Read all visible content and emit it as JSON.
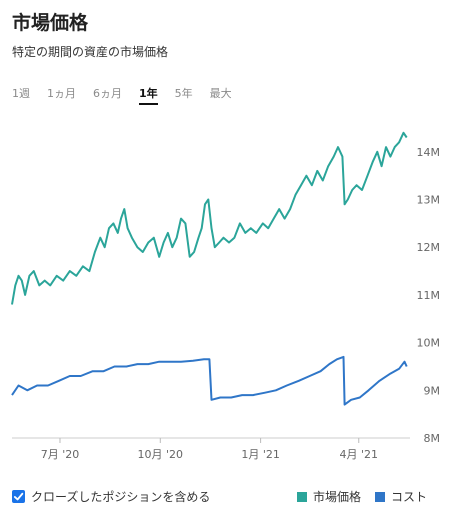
{
  "header": {
    "title": "市場価格",
    "subtitle": "特定の期間の資産の市場価格"
  },
  "tabs": [
    {
      "label": "1週",
      "active": false
    },
    {
      "label": "1ヵ月",
      "active": false
    },
    {
      "label": "6ヵ月",
      "active": false
    },
    {
      "label": "1年",
      "active": true
    },
    {
      "label": "5年",
      "active": false
    },
    {
      "label": "最大",
      "active": false
    }
  ],
  "footer": {
    "checkbox_label": "クローズしたポジションを含める",
    "checkbox_checked": true
  },
  "chart_data": {
    "type": "line",
    "x_start": "2020-05-18",
    "x_end": "2021-05-18",
    "ylim": [
      8,
      14.5
    ],
    "ytick_values": [
      8,
      9,
      10,
      11,
      12,
      13,
      14
    ],
    "ytick_labels": [
      "8M",
      "9M",
      "10M",
      "11M",
      "12M",
      "13M",
      "14M"
    ],
    "xticks": [
      {
        "date": "2020-07-01",
        "label": "7月 '20"
      },
      {
        "date": "2020-10-01",
        "label": "10月 '20"
      },
      {
        "date": "2021-01-01",
        "label": "1月 '21"
      },
      {
        "date": "2021-04-01",
        "label": "4月 '21"
      }
    ],
    "series": [
      {
        "name": "市場価格",
        "color": "#2ba59a",
        "points": [
          [
            "2020-05-18",
            10.8
          ],
          [
            "2020-05-21",
            11.2
          ],
          [
            "2020-05-24",
            11.4
          ],
          [
            "2020-05-27",
            11.3
          ],
          [
            "2020-05-30",
            11.0
          ],
          [
            "2020-06-03",
            11.4
          ],
          [
            "2020-06-07",
            11.5
          ],
          [
            "2020-06-12",
            11.2
          ],
          [
            "2020-06-17",
            11.3
          ],
          [
            "2020-06-22",
            11.2
          ],
          [
            "2020-06-28",
            11.4
          ],
          [
            "2020-07-04",
            11.3
          ],
          [
            "2020-07-10",
            11.5
          ],
          [
            "2020-07-16",
            11.4
          ],
          [
            "2020-07-22",
            11.6
          ],
          [
            "2020-07-28",
            11.5
          ],
          [
            "2020-08-02",
            11.9
          ],
          [
            "2020-08-07",
            12.2
          ],
          [
            "2020-08-11",
            12.0
          ],
          [
            "2020-08-15",
            12.4
          ],
          [
            "2020-08-19",
            12.5
          ],
          [
            "2020-08-23",
            12.3
          ],
          [
            "2020-08-26",
            12.6
          ],
          [
            "2020-08-29",
            12.8
          ],
          [
            "2020-09-01",
            12.4
          ],
          [
            "2020-09-05",
            12.2
          ],
          [
            "2020-09-10",
            12.0
          ],
          [
            "2020-09-15",
            11.9
          ],
          [
            "2020-09-20",
            12.1
          ],
          [
            "2020-09-25",
            12.2
          ],
          [
            "2020-09-30",
            11.8
          ],
          [
            "2020-10-04",
            12.1
          ],
          [
            "2020-10-08",
            12.3
          ],
          [
            "2020-10-12",
            12.0
          ],
          [
            "2020-10-16",
            12.2
          ],
          [
            "2020-10-20",
            12.6
          ],
          [
            "2020-10-24",
            12.5
          ],
          [
            "2020-10-28",
            11.8
          ],
          [
            "2020-11-01",
            11.9
          ],
          [
            "2020-11-05",
            12.2
          ],
          [
            "2020-11-08",
            12.4
          ],
          [
            "2020-11-11",
            12.9
          ],
          [
            "2020-11-14",
            13.0
          ],
          [
            "2020-11-17",
            12.4
          ],
          [
            "2020-11-20",
            12.0
          ],
          [
            "2020-11-24",
            12.1
          ],
          [
            "2020-11-28",
            12.2
          ],
          [
            "2020-12-03",
            12.1
          ],
          [
            "2020-12-08",
            12.2
          ],
          [
            "2020-12-13",
            12.5
          ],
          [
            "2020-12-18",
            12.3
          ],
          [
            "2020-12-23",
            12.4
          ],
          [
            "2020-12-28",
            12.3
          ],
          [
            "2021-01-03",
            12.5
          ],
          [
            "2021-01-08",
            12.4
          ],
          [
            "2021-01-13",
            12.6
          ],
          [
            "2021-01-18",
            12.8
          ],
          [
            "2021-01-23",
            12.6
          ],
          [
            "2021-01-28",
            12.8
          ],
          [
            "2021-02-02",
            13.1
          ],
          [
            "2021-02-07",
            13.3
          ],
          [
            "2021-02-12",
            13.5
          ],
          [
            "2021-02-17",
            13.3
          ],
          [
            "2021-02-22",
            13.6
          ],
          [
            "2021-02-27",
            13.4
          ],
          [
            "2021-03-04",
            13.7
          ],
          [
            "2021-03-09",
            13.9
          ],
          [
            "2021-03-13",
            14.1
          ],
          [
            "2021-03-17",
            13.9
          ],
          [
            "2021-03-19",
            12.9
          ],
          [
            "2021-03-22",
            13.0
          ],
          [
            "2021-03-26",
            13.2
          ],
          [
            "2021-03-30",
            13.3
          ],
          [
            "2021-04-04",
            13.2
          ],
          [
            "2021-04-09",
            13.5
          ],
          [
            "2021-04-14",
            13.8
          ],
          [
            "2021-04-18",
            14.0
          ],
          [
            "2021-04-22",
            13.7
          ],
          [
            "2021-04-26",
            14.1
          ],
          [
            "2021-04-30",
            13.9
          ],
          [
            "2021-05-04",
            14.1
          ],
          [
            "2021-05-08",
            14.2
          ],
          [
            "2021-05-12",
            14.4
          ],
          [
            "2021-05-15",
            14.3
          ]
        ]
      },
      {
        "name": "コスト",
        "color": "#2f76c8",
        "points": [
          [
            "2020-05-18",
            8.9
          ],
          [
            "2020-05-24",
            9.1
          ],
          [
            "2020-06-01",
            9.0
          ],
          [
            "2020-06-10",
            9.1
          ],
          [
            "2020-06-20",
            9.1
          ],
          [
            "2020-06-30",
            9.2
          ],
          [
            "2020-07-10",
            9.3
          ],
          [
            "2020-07-20",
            9.3
          ],
          [
            "2020-07-31",
            9.4
          ],
          [
            "2020-08-10",
            9.4
          ],
          [
            "2020-08-20",
            9.5
          ],
          [
            "2020-08-31",
            9.5
          ],
          [
            "2020-09-10",
            9.55
          ],
          [
            "2020-09-20",
            9.55
          ],
          [
            "2020-09-30",
            9.6
          ],
          [
            "2020-10-10",
            9.6
          ],
          [
            "2020-10-20",
            9.6
          ],
          [
            "2020-10-31",
            9.62
          ],
          [
            "2020-11-10",
            9.65
          ],
          [
            "2020-11-15",
            9.65
          ],
          [
            "2020-11-17",
            8.8
          ],
          [
            "2020-11-25",
            8.85
          ],
          [
            "2020-12-05",
            8.85
          ],
          [
            "2020-12-15",
            8.9
          ],
          [
            "2020-12-25",
            8.9
          ],
          [
            "2021-01-05",
            8.95
          ],
          [
            "2021-01-15",
            9.0
          ],
          [
            "2021-01-25",
            9.1
          ],
          [
            "2021-02-05",
            9.2
          ],
          [
            "2021-02-15",
            9.3
          ],
          [
            "2021-02-25",
            9.4
          ],
          [
            "2021-03-05",
            9.55
          ],
          [
            "2021-03-12",
            9.65
          ],
          [
            "2021-03-18",
            9.7
          ],
          [
            "2021-03-19",
            8.7
          ],
          [
            "2021-03-25",
            8.8
          ],
          [
            "2021-04-02",
            8.85
          ],
          [
            "2021-04-10",
            9.0
          ],
          [
            "2021-04-20",
            9.2
          ],
          [
            "2021-04-30",
            9.35
          ],
          [
            "2021-05-08",
            9.45
          ],
          [
            "2021-05-13",
            9.6
          ],
          [
            "2021-05-15",
            9.5
          ]
        ]
      }
    ]
  }
}
